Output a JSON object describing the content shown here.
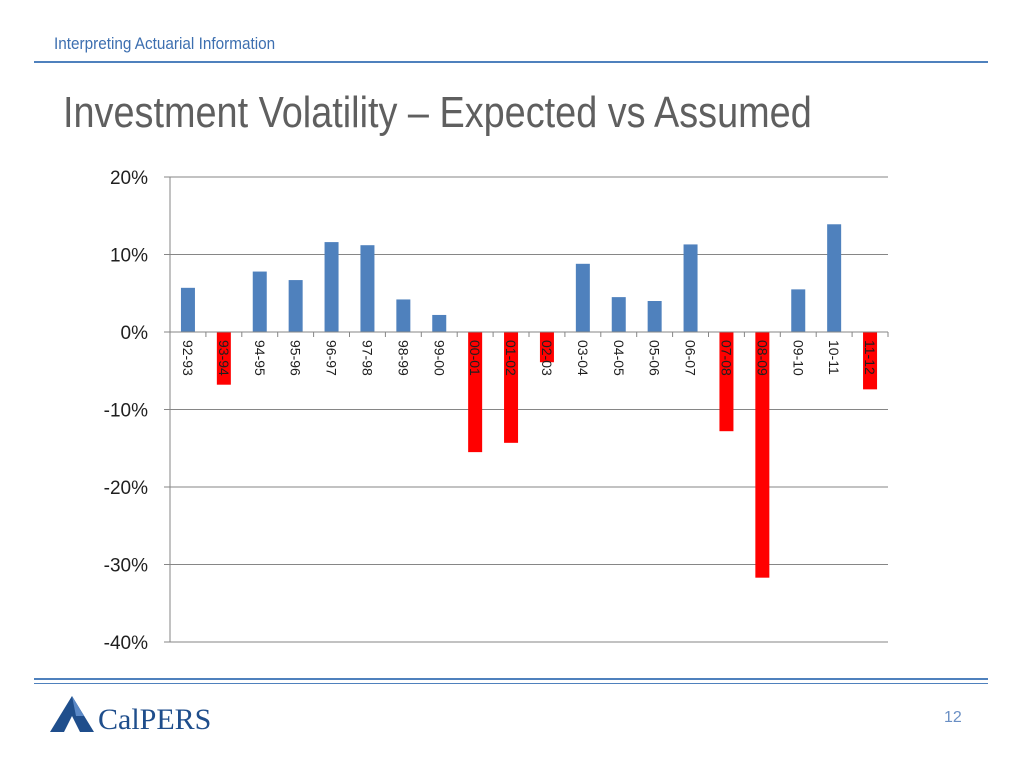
{
  "header": {
    "section": "Interpreting Actuarial Information"
  },
  "slide": {
    "title": "Investment Volatility – Expected vs Assumed"
  },
  "footer": {
    "logo_text": "CalPERS",
    "page_number": "12"
  },
  "colors": {
    "positive": "#4f81bd",
    "negative": "#ff0000",
    "grid": "#868686",
    "text": "#1f1f1f"
  },
  "chart_data": {
    "type": "bar",
    "categories": [
      "92-93",
      "93-94",
      "94-95",
      "95-96",
      "96-97",
      "97-98",
      "98-99",
      "99-00",
      "00-01",
      "01-02",
      "02-03",
      "03-04",
      "04-05",
      "05-06",
      "06-07",
      "07-08",
      "08-09",
      "09-10",
      "10-11",
      "11-12"
    ],
    "values": [
      5.7,
      -6.8,
      7.8,
      6.7,
      11.6,
      11.2,
      4.2,
      2.2,
      -15.5,
      -14.3,
      -3.9,
      8.8,
      4.5,
      4.0,
      11.3,
      -12.8,
      -31.7,
      5.5,
      13.9,
      -7.4
    ],
    "ylim": [
      -40,
      20
    ],
    "yticks": [
      20,
      10,
      0,
      -10,
      -20,
      -30,
      -40
    ],
    "ytick_labels": [
      "20%",
      "10%",
      "0%",
      "-10%",
      "-20%",
      "-30%",
      "-40%"
    ],
    "grid": true,
    "title": "",
    "xlabel": "",
    "ylabel": ""
  }
}
